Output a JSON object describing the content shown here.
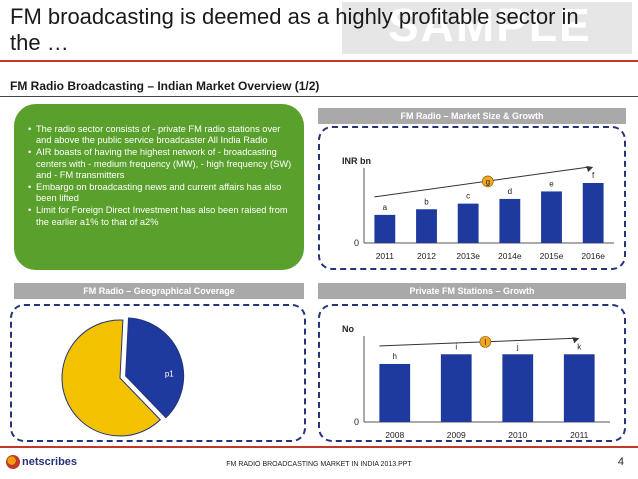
{
  "title": "FM broadcasting is deemed as a highly profitable sector in the …",
  "watermark": "SAMPLE",
  "subtitle": "FM Radio Broadcasting – Indian Market Overview (1/2)",
  "overview_bullets": [
    "The radio sector consists of - private FM radio stations over and above the public service broadcaster All India Radio",
    "AIR boasts of having the highest network of - broadcasting centers with - medium frequency (MW), - high frequency (SW) and - FM transmitters",
    "Embargo on broadcasting news and current affairs has also been lifted",
    "Limit for Foreign Direct Investment has also been raised from the earlier a1% to that of a2%"
  ],
  "market_size": {
    "heading": "FM Radio – Market Size & Growth",
    "unit": "INR bn",
    "zero": "0",
    "growth_marker": "g"
  },
  "geo_coverage": {
    "heading": "FM Radio – Geographical Coverage",
    "slice_label": "p1"
  },
  "private_stations": {
    "heading": "Private FM Stations – Growth",
    "unit": "No",
    "zero": "0",
    "growth_marker": "l"
  },
  "colors": {
    "bar": "#1f3a9e",
    "green": "#5aa02c",
    "accent_red": "#c0392b",
    "pie_yellow": "#f2c200",
    "marker_orange": "#f5a623"
  },
  "chart_data": [
    {
      "type": "bar",
      "categories": [
        "2011",
        "2012",
        "2013e",
        "2014e",
        "2015e",
        "2016e"
      ],
      "values": [
        3.0,
        3.6,
        4.2,
        4.7,
        5.5,
        6.4
      ],
      "labels": [
        "a",
        "b",
        "c",
        "d",
        "e",
        "f"
      ],
      "ylabel": "INR bn",
      "ylim": [
        0,
        8
      ]
    },
    {
      "type": "pie",
      "labels": [
        "p1",
        ""
      ],
      "values": [
        37,
        63
      ],
      "colors": [
        "#1f3a9e",
        "#f2c200"
      ]
    },
    {
      "type": "bar",
      "categories": [
        "2008",
        "2009",
        "2010",
        "2011"
      ],
      "values": [
        5.4,
        6.3,
        6.3,
        6.3
      ],
      "labels": [
        "h",
        "i",
        "j",
        "k"
      ],
      "ylabel": "No",
      "ylim": [
        0,
        8
      ]
    }
  ],
  "footer": {
    "text": "FM RADIO BROADCASTING MARKET IN INDIA 2013.PPT",
    "page": "4",
    "logo": "netscribes"
  }
}
